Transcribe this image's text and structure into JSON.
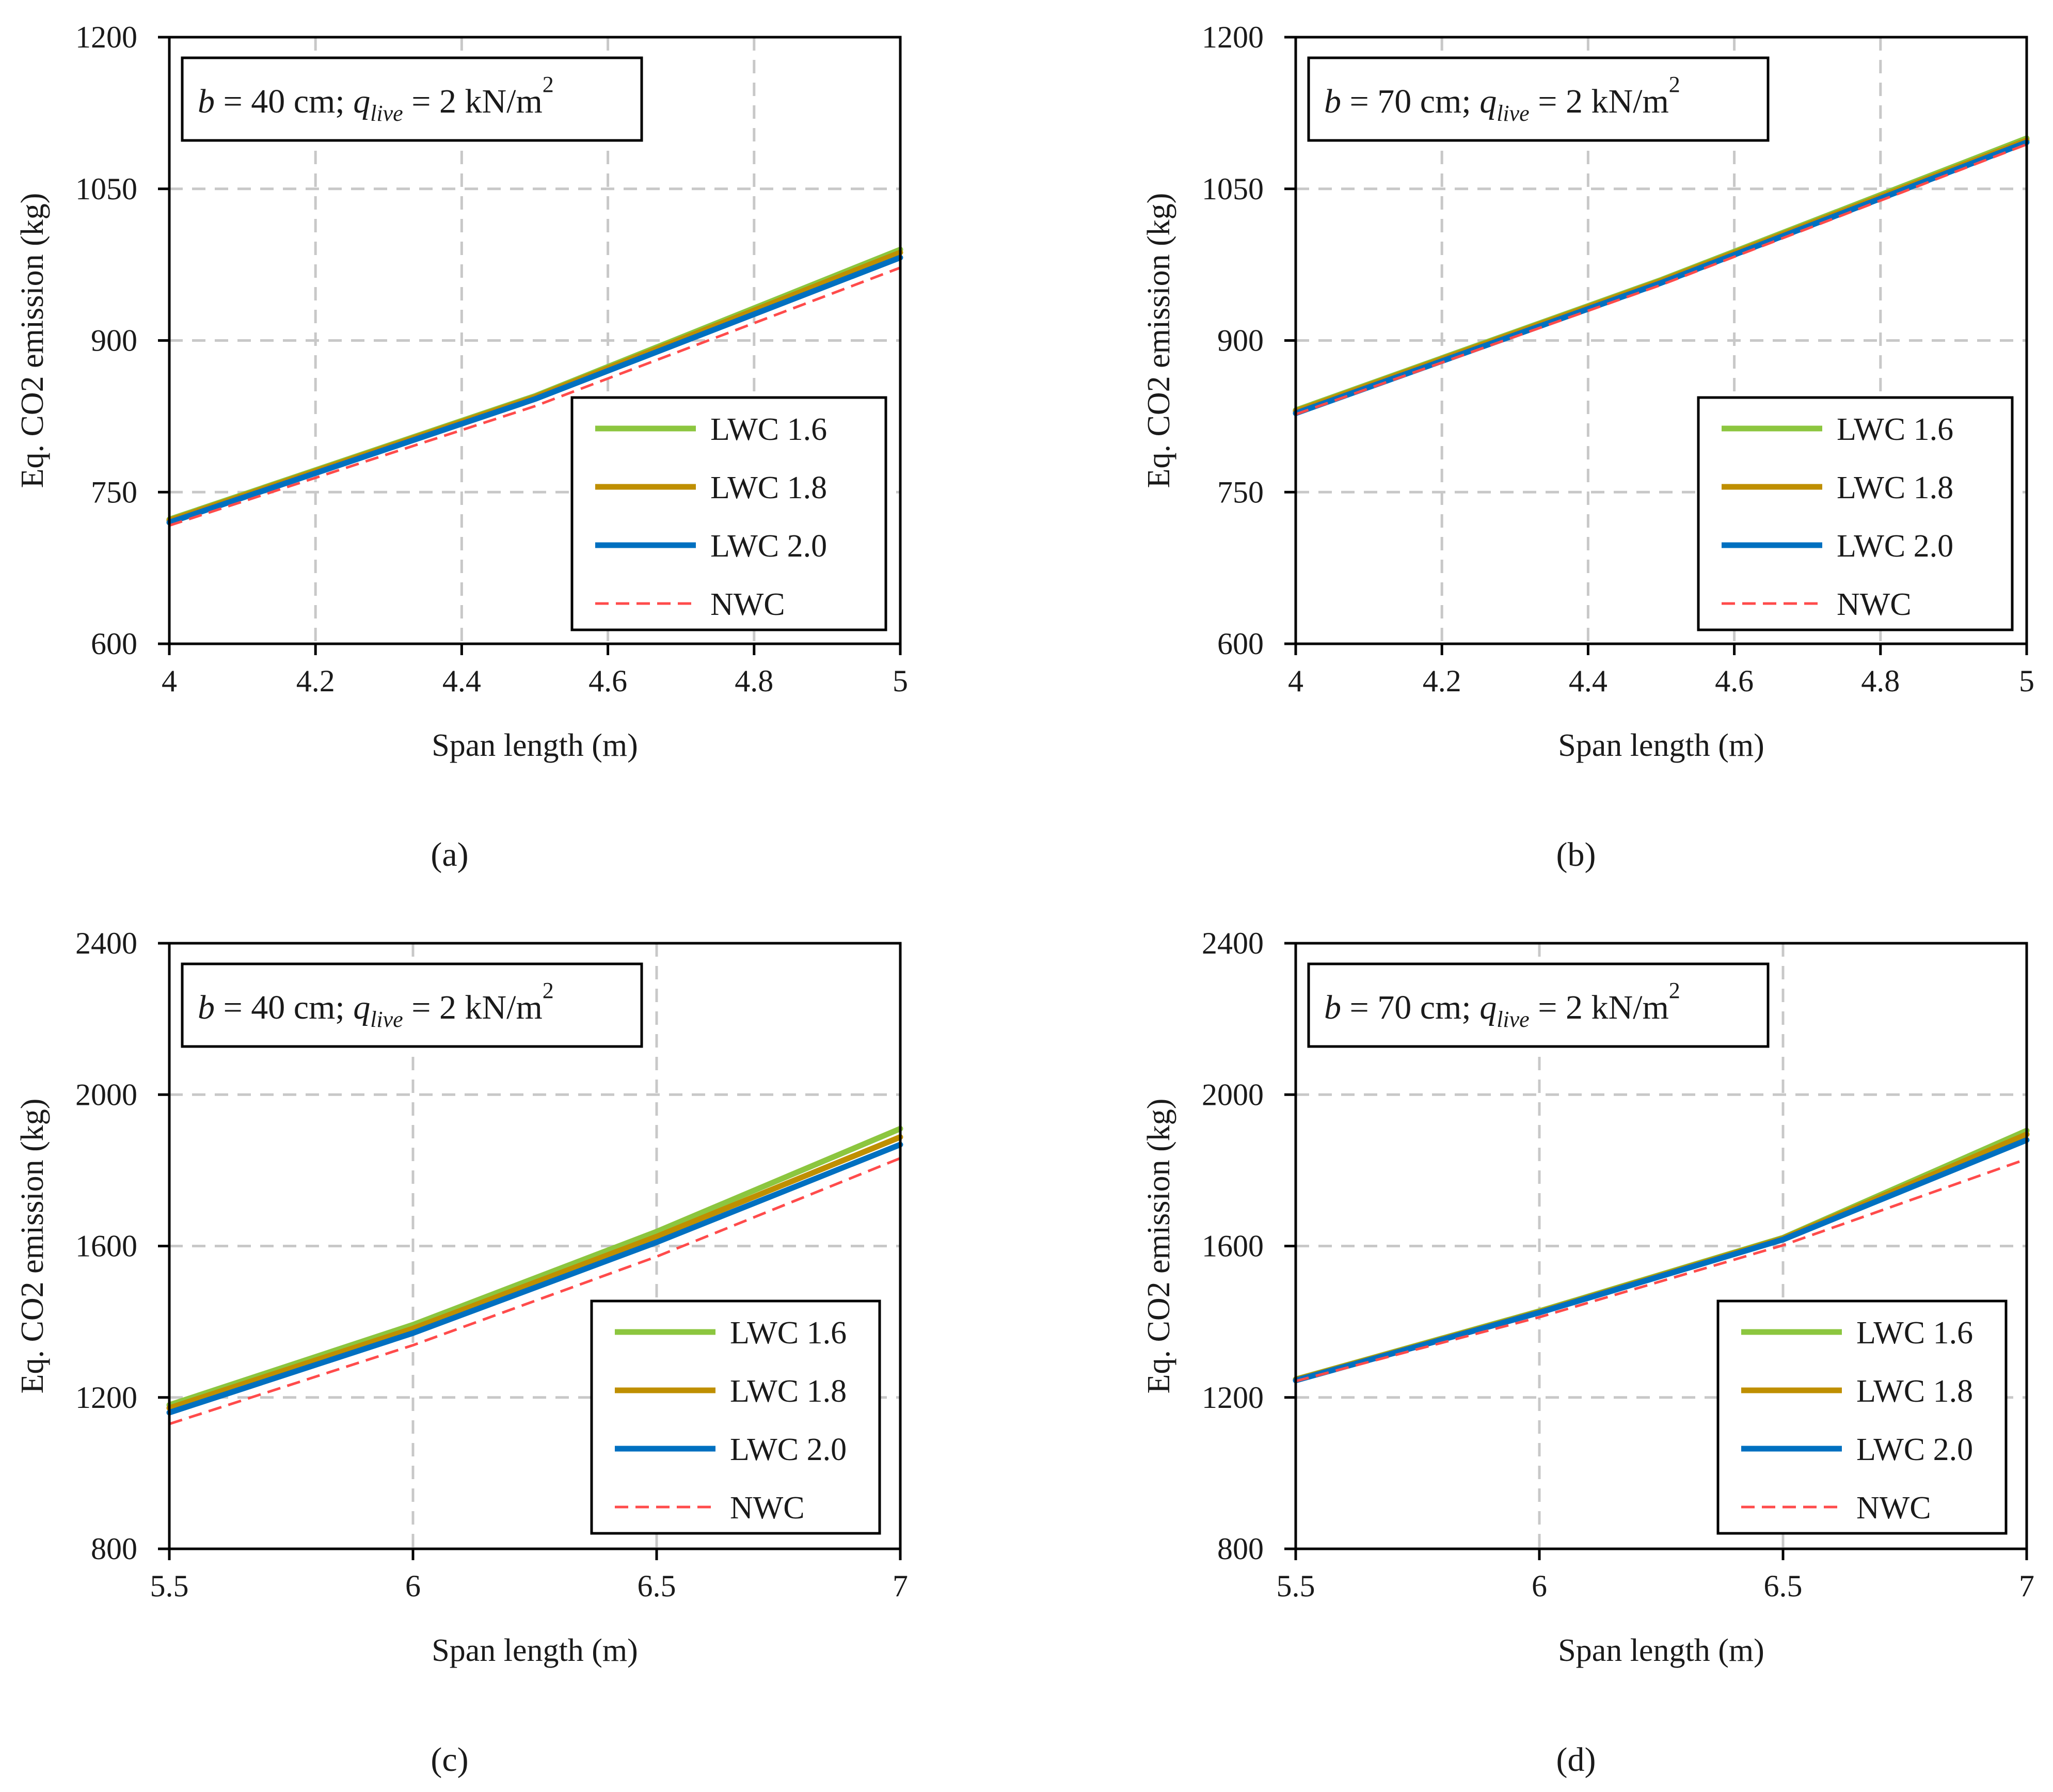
{
  "colors": {
    "lwc16": "#8cc63f",
    "lwc18": "#bf8f00",
    "lwc20": "#0070c0",
    "nwc": "#ff4b4b"
  },
  "legend": [
    "LWC 1.6",
    "LWC 1.8",
    "LWC 2.0",
    "NWC"
  ],
  "chart_data": [
    {
      "id": "a",
      "type": "line",
      "caption": "(a)",
      "title": {
        "b": "40 cm",
        "q": "2 kN/m",
        "sup": "2"
      },
      "xlabel": "Span length (m)",
      "ylabel": "Eq. CO2 emission (kg)",
      "xlim": [
        4,
        5
      ],
      "ylim": [
        600,
        1200
      ],
      "xticks": [
        4,
        4.2,
        4.4,
        4.6,
        4.8,
        5
      ],
      "yticks": [
        600,
        750,
        900,
        1050,
        1200
      ],
      "x": [
        4,
        4.5,
        5
      ],
      "series": [
        {
          "name": "LWC 1.6",
          "values": [
            723,
            845,
            990
          ]
        },
        {
          "name": "LWC 1.8",
          "values": [
            722,
            844,
            987
          ]
        },
        {
          "name": "LWC 2.0",
          "values": [
            720,
            842,
            982
          ]
        },
        {
          "name": "NWC",
          "values": [
            717,
            835,
            972
          ]
        }
      ]
    },
    {
      "id": "b",
      "type": "line",
      "caption": "(b)",
      "title": {
        "b": "70 cm",
        "q": "2 kN/m",
        "sup": "2"
      },
      "xlabel": "Span length (m)",
      "ylabel": "Eq. CO2 emission (kg)",
      "xlim": [
        4,
        5
      ],
      "ylim": [
        600,
        1200
      ],
      "xticks": [
        4,
        4.2,
        4.4,
        4.6,
        4.8,
        5
      ],
      "yticks": [
        600,
        750,
        900,
        1050,
        1200
      ],
      "x": [
        4,
        4.5,
        5
      ],
      "series": [
        {
          "name": "LWC 1.6",
          "values": [
            831,
            960,
            1100
          ]
        },
        {
          "name": "LWC 1.8",
          "values": [
            830,
            959,
            1098
          ]
        },
        {
          "name": "LWC 2.0",
          "values": [
            828,
            957,
            1096
          ]
        },
        {
          "name": "NWC",
          "values": [
            827,
            955,
            1094
          ]
        }
      ]
    },
    {
      "id": "c",
      "type": "line",
      "caption": "(c)",
      "title": {
        "b": "40 cm",
        "q": "2 kN/m",
        "sup": "2"
      },
      "xlabel": "Span length (m)",
      "ylabel": "Eq. CO2 emission (kg)",
      "xlim": [
        5.5,
        7
      ],
      "ylim": [
        800,
        2400
      ],
      "xticks": [
        5.5,
        6,
        6.5,
        7
      ],
      "yticks": [
        800,
        1200,
        1600,
        2000,
        2400
      ],
      "x": [
        5.5,
        6,
        6.5,
        7
      ],
      "series": [
        {
          "name": "LWC 1.6",
          "values": [
            1180,
            1392,
            1638,
            1910
          ]
        },
        {
          "name": "LWC 1.8",
          "values": [
            1172,
            1382,
            1625,
            1888
          ]
        },
        {
          "name": "LWC 2.0",
          "values": [
            1160,
            1370,
            1610,
            1868
          ]
        },
        {
          "name": "NWC",
          "values": [
            1130,
            1338,
            1572,
            1832
          ]
        }
      ]
    },
    {
      "id": "d",
      "type": "line",
      "caption": "(d)",
      "title": {
        "b": "70 cm",
        "q": "2 kN/m",
        "sup": "2"
      },
      "xlabel": "Span length (m)",
      "ylabel": "Eq. CO2 emission (kg)",
      "xlim": [
        5.5,
        7
      ],
      "ylim": [
        800,
        2400
      ],
      "xticks": [
        5.5,
        6,
        6.5,
        7
      ],
      "yticks": [
        800,
        1200,
        1600,
        2000,
        2400
      ],
      "x": [
        5.5,
        6,
        6.5,
        7
      ],
      "series": [
        {
          "name": "LWC 1.6",
          "values": [
            1248,
            1428,
            1622,
            1905
          ]
        },
        {
          "name": "LWC 1.8",
          "values": [
            1247,
            1426,
            1620,
            1895
          ]
        },
        {
          "name": "LWC 2.0",
          "values": [
            1245,
            1424,
            1617,
            1880
          ]
        },
        {
          "name": "NWC",
          "values": [
            1243,
            1412,
            1602,
            1830
          ]
        }
      ]
    }
  ]
}
